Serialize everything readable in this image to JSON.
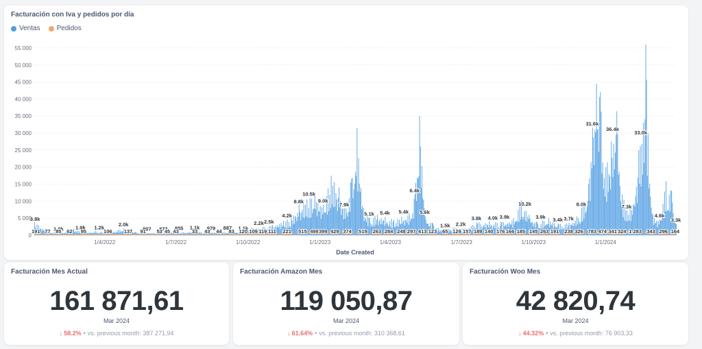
{
  "chart": {
    "title": "Facturación con Iva y pedidos por día",
    "legend": [
      {
        "label": "Ventas",
        "color": "#509ee3"
      },
      {
        "label": "Pedidos",
        "color": "#f2a86f"
      }
    ],
    "xlabel": "Date Created"
  },
  "chart_data": {
    "type": "bar",
    "title": "Facturación con Iva y pedidos por día",
    "xlabel": "Date Created",
    "ylabel": "",
    "ylim": [
      0,
      57000
    ],
    "y_ticks": [
      "0",
      "5 000",
      "10 000",
      "15 000",
      "20 000",
      "25 000",
      "30 000",
      "35 000",
      "40 000",
      "45 000",
      "50 000",
      "55 000"
    ],
    "x_ticks": [
      "1/4/2022",
      "1/7/2022",
      "1/10/2022",
      "1/1/2023",
      "1/4/2023",
      "1/7/2023",
      "1/10/2023",
      "1/1/2024"
    ],
    "x_range": [
      "2022-01-01",
      "2024-03-31"
    ],
    "grid": "horizontal",
    "legend_position": "top-left",
    "series": [
      {
        "name": "Ventas",
        "color": "#509ee3",
        "points": [
          [
            "2022-01-01",
            3800
          ],
          [
            "2022-01-20",
            1000
          ],
          [
            "2022-02-05",
            600
          ],
          [
            "2022-02-20",
            1900
          ],
          [
            "2022-03-05",
            700
          ],
          [
            "2022-03-20",
            1200
          ],
          [
            "2022-04-05",
            900
          ],
          [
            "2022-04-25",
            2000
          ],
          [
            "2022-05-10",
            900
          ],
          [
            "2022-05-25",
            700
          ],
          [
            "2022-06-10",
            700
          ],
          [
            "2022-06-25",
            800
          ],
          [
            "2022-07-10",
            900
          ],
          [
            "2022-07-25",
            1100
          ],
          [
            "2022-08-10",
            900
          ],
          [
            "2022-08-25",
            900
          ],
          [
            "2022-09-10",
            1100
          ],
          [
            "2022-09-25",
            900
          ],
          [
            "2022-10-05",
            2200
          ],
          [
            "2022-10-20",
            2500
          ],
          [
            "2022-11-01",
            3000
          ],
          [
            "2022-11-15",
            4200
          ],
          [
            "2022-11-25",
            5000
          ],
          [
            "2022-12-05",
            8800
          ],
          [
            "2022-12-15",
            10500
          ],
          [
            "2022-12-25",
            12000
          ],
          [
            "2023-01-05",
            9000
          ],
          [
            "2023-01-15",
            17500
          ],
          [
            "2023-01-25",
            14000
          ],
          [
            "2023-02-01",
            7900
          ],
          [
            "2023-02-10",
            16500
          ],
          [
            "2023-02-17",
            31500
          ],
          [
            "2023-02-25",
            8000
          ],
          [
            "2023-03-05",
            5100
          ],
          [
            "2023-03-15",
            6000
          ],
          [
            "2023-03-25",
            5400
          ],
          [
            "2023-04-05",
            4500
          ],
          [
            "2023-04-15",
            5400
          ],
          [
            "2023-04-25",
            6400
          ],
          [
            "2023-05-02",
            12000
          ],
          [
            "2023-05-08",
            35000
          ],
          [
            "2023-05-15",
            5600
          ],
          [
            "2023-05-25",
            3500
          ],
          [
            "2023-06-05",
            1500
          ],
          [
            "2023-06-20",
            2200
          ],
          [
            "2023-07-05",
            2000
          ],
          [
            "2023-07-20",
            3800
          ],
          [
            "2023-08-05",
            4000
          ],
          [
            "2023-08-20",
            3900
          ],
          [
            "2023-09-05",
            5000
          ],
          [
            "2023-09-15",
            10200
          ],
          [
            "2023-09-25",
            6000
          ],
          [
            "2023-10-05",
            3900
          ],
          [
            "2023-10-20",
            5000
          ],
          [
            "2023-11-01",
            3400
          ],
          [
            "2023-11-15",
            3700
          ],
          [
            "2023-11-25",
            5500
          ],
          [
            "2023-12-01",
            8000
          ],
          [
            "2023-12-10",
            15000
          ],
          [
            "2023-12-15",
            31600
          ],
          [
            "2023-12-20",
            44500
          ],
          [
            "2023-12-25",
            42000
          ],
          [
            "2024-01-01",
            20000
          ],
          [
            "2024-01-08",
            27500
          ],
          [
            "2024-01-15",
            36400
          ],
          [
            "2024-01-22",
            12000
          ],
          [
            "2024-01-28",
            7300
          ],
          [
            "2024-02-05",
            9000
          ],
          [
            "2024-02-12",
            25000
          ],
          [
            "2024-02-18",
            33000
          ],
          [
            "2024-02-21",
            56000
          ],
          [
            "2024-02-24",
            30000
          ],
          [
            "2024-03-01",
            6000
          ],
          [
            "2024-03-10",
            4600
          ],
          [
            "2024-03-18",
            15900
          ],
          [
            "2024-03-25",
            13000
          ],
          [
            "2024-03-31",
            3300
          ]
        ]
      },
      {
        "name": "Pedidos",
        "color": "#f2a86f",
        "points": [
          [
            "2022-01-03",
            191
          ],
          [
            "2022-01-18",
            77
          ],
          [
            "2022-02-01",
            85
          ],
          [
            "2022-02-15",
            62
          ],
          [
            "2022-03-05",
            95
          ],
          [
            "2022-04-05",
            106
          ],
          [
            "2022-05-01",
            137
          ],
          [
            "2022-05-20",
            91
          ],
          [
            "2022-06-10",
            53
          ],
          [
            "2022-06-20",
            45
          ],
          [
            "2022-07-01",
            43
          ],
          [
            "2022-07-25",
            33
          ],
          [
            "2022-08-10",
            43
          ],
          [
            "2022-08-25",
            44
          ],
          [
            "2022-09-10",
            83
          ],
          [
            "2022-09-25",
            120
          ],
          [
            "2022-10-08",
            109
          ],
          [
            "2022-10-20",
            119
          ],
          [
            "2022-11-01",
            111
          ],
          [
            "2022-11-20",
            221
          ],
          [
            "2022-12-10",
            515
          ],
          [
            "2022-12-25",
            498
          ],
          [
            "2023-01-05",
            399
          ],
          [
            "2023-01-20",
            429
          ],
          [
            "2023-02-05",
            374
          ],
          [
            "2023-02-25",
            519
          ],
          [
            "2023-03-15",
            263
          ],
          [
            "2023-03-30",
            284
          ],
          [
            "2023-04-15",
            248
          ],
          [
            "2023-04-28",
            297
          ],
          [
            "2023-05-12",
            413
          ],
          [
            "2023-05-25",
            123
          ],
          [
            "2023-06-10",
            65
          ],
          [
            "2023-06-25",
            129
          ],
          [
            "2023-07-08",
            157
          ],
          [
            "2023-07-22",
            189
          ],
          [
            "2023-08-05",
            140
          ],
          [
            "2023-08-20",
            176
          ],
          [
            "2023-09-01",
            166
          ],
          [
            "2023-09-15",
            185
          ],
          [
            "2023-10-01",
            145
          ],
          [
            "2023-10-15",
            263
          ],
          [
            "2023-10-28",
            191
          ],
          [
            "2023-11-15",
            238
          ],
          [
            "2023-11-28",
            326
          ],
          [
            "2023-12-15",
            783
          ],
          [
            "2023-12-28",
            474
          ],
          [
            "2024-01-10",
            341
          ],
          [
            "2024-01-22",
            324
          ],
          [
            "2024-02-08",
            1283
          ],
          [
            "2024-02-28",
            343
          ],
          [
            "2024-03-15",
            296
          ],
          [
            "2024-03-30",
            164
          ]
        ]
      }
    ],
    "data_labels": {
      "ventas": [
        [
          "2022-01-02",
          "3.8k"
        ],
        [
          "2022-02-01",
          "1.0k"
        ],
        [
          "2022-03-01",
          "1.9k"
        ],
        [
          "2022-03-25",
          "1.2k"
        ],
        [
          "2022-04-25",
          "2.0k"
        ],
        [
          "2022-05-25",
          "807"
        ],
        [
          "2022-06-15",
          "873"
        ],
        [
          "2022-07-05",
          "855"
        ],
        [
          "2022-07-25",
          "1.1k"
        ],
        [
          "2022-08-15",
          "979"
        ],
        [
          "2022-09-05",
          "887"
        ],
        [
          "2022-09-25",
          "1.1k"
        ],
        [
          "2022-10-15",
          "2.2k"
        ],
        [
          "2022-10-28",
          "2.5k"
        ],
        [
          "2022-11-20",
          "4.2k"
        ],
        [
          "2022-12-05",
          "8.8k"
        ],
        [
          "2022-12-18",
          "10.5k"
        ],
        [
          "2023-01-05",
          "9.0k"
        ],
        [
          "2023-02-01",
          "7.9k"
        ],
        [
          "2023-03-05",
          "5.1k"
        ],
        [
          "2023-03-25",
          "5.4k"
        ],
        [
          "2023-04-18",
          "5.4k"
        ],
        [
          "2023-05-02",
          "6.4k"
        ],
        [
          "2023-05-15",
          "5.6k"
        ],
        [
          "2023-06-10",
          "1.5k"
        ],
        [
          "2023-06-30",
          "2.2k"
        ],
        [
          "2023-07-20",
          "3.8k"
        ],
        [
          "2023-08-10",
          "4.0k"
        ],
        [
          "2023-08-25",
          "3.9k"
        ],
        [
          "2023-09-20",
          "10.2k"
        ],
        [
          "2023-10-10",
          "3.9k"
        ],
        [
          "2023-11-01",
          "3.4k"
        ],
        [
          "2023-11-15",
          "3.7k"
        ],
        [
          "2023-12-01",
          "8.0k"
        ],
        [
          "2023-12-15",
          "31.6k"
        ],
        [
          "2024-01-10",
          "36.4k"
        ],
        [
          "2024-01-28",
          "7.3k"
        ],
        [
          "2024-02-15",
          "33.0k"
        ],
        [
          "2024-03-10",
          "4.6k"
        ],
        [
          "2024-03-31",
          "3.3k"
        ]
      ],
      "pedidos": [
        [
          "2022-01-03",
          "191"
        ],
        [
          "2022-01-18",
          "77"
        ],
        [
          "2022-02-01",
          "85"
        ],
        [
          "2022-02-15",
          "62"
        ],
        [
          "2022-03-05",
          "95"
        ],
        [
          "2022-04-05",
          "106"
        ],
        [
          "2022-05-01",
          "137"
        ],
        [
          "2022-05-20",
          "91"
        ],
        [
          "2022-06-10",
          "53"
        ],
        [
          "2022-06-20",
          "45"
        ],
        [
          "2022-07-01",
          "43"
        ],
        [
          "2022-07-25",
          "33"
        ],
        [
          "2022-08-10",
          "43"
        ],
        [
          "2022-08-25",
          "44"
        ],
        [
          "2022-09-10",
          "83"
        ],
        [
          "2022-09-25",
          "120"
        ],
        [
          "2022-10-08",
          "109"
        ],
        [
          "2022-10-20",
          "119"
        ],
        [
          "2022-11-01",
          "111"
        ],
        [
          "2022-11-20",
          "221"
        ],
        [
          "2022-12-10",
          "515"
        ],
        [
          "2022-12-25",
          "498"
        ],
        [
          "2023-01-05",
          "399"
        ],
        [
          "2023-01-20",
          "429"
        ],
        [
          "2023-02-05",
          "374"
        ],
        [
          "2023-02-25",
          "519"
        ],
        [
          "2023-03-15",
          "263"
        ],
        [
          "2023-03-30",
          "284"
        ],
        [
          "2023-04-15",
          "248"
        ],
        [
          "2023-04-28",
          "297"
        ],
        [
          "2023-05-12",
          "413"
        ],
        [
          "2023-05-25",
          "123"
        ],
        [
          "2023-06-10",
          "65"
        ],
        [
          "2023-06-25",
          "129"
        ],
        [
          "2023-07-08",
          "157"
        ],
        [
          "2023-07-22",
          "189"
        ],
        [
          "2023-08-05",
          "140"
        ],
        [
          "2023-08-20",
          "176"
        ],
        [
          "2023-09-01",
          "166"
        ],
        [
          "2023-09-15",
          "185"
        ],
        [
          "2023-10-01",
          "145"
        ],
        [
          "2023-10-15",
          "263"
        ],
        [
          "2023-10-28",
          "191"
        ],
        [
          "2023-11-15",
          "238"
        ],
        [
          "2023-11-28",
          "326"
        ],
        [
          "2023-12-15",
          "783"
        ],
        [
          "2023-12-28",
          "474"
        ],
        [
          "2024-01-10",
          "341"
        ],
        [
          "2024-01-22",
          "324"
        ],
        [
          "2024-02-08",
          "1 283"
        ],
        [
          "2024-02-28",
          "343"
        ],
        [
          "2024-03-15",
          "296"
        ],
        [
          "2024-03-30",
          "164"
        ]
      ]
    }
  },
  "kpis": [
    {
      "title": "Facturación Mes Actual",
      "value": "161 871,61",
      "period": "Mar 2024",
      "change": "58.2%",
      "compare_label": "vs. previous month:",
      "previous": "387 271,94"
    },
    {
      "title": "Facturación Amazon Mes",
      "value": "119 050,87",
      "period": "Mar 2024",
      "change": "61.64%",
      "compare_label": "vs. previous month:",
      "previous": "310 368,61"
    },
    {
      "title": "Facturación Woo Mes",
      "value": "42 820,74",
      "period": "Mar 2024",
      "change": "44.32%",
      "compare_label": "vs. previous month:",
      "previous": "76 903,33"
    }
  ],
  "icons": {
    "down_arrow": "arrow-down-icon",
    "bullet": "•"
  }
}
